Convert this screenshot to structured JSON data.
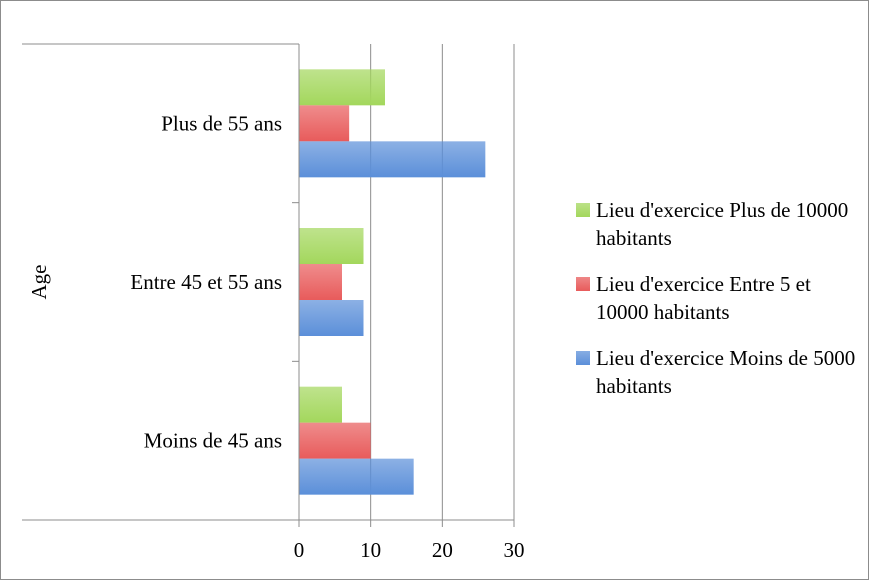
{
  "chart_data": {
    "type": "bar",
    "orientation": "horizontal",
    "ylabel": "Age",
    "xlabel": "",
    "categories": [
      "Moins de 45 ans",
      "Entre 45 et 55 ans",
      "Plus de 55 ans"
    ],
    "xlim": [
      0,
      30
    ],
    "xticks": [
      "0",
      "10",
      "20",
      "30"
    ],
    "grid": true,
    "legend_position": "right",
    "series": [
      {
        "name": "Lieu d'exercice Moins de 5000 habitants",
        "values": [
          16,
          9,
          26
        ],
        "color": "#5b8fd9"
      },
      {
        "name": "Lieu d'exercice Entre 5 et 10000 habitants",
        "values": [
          10,
          6,
          7
        ],
        "color": "#e85b5b"
      },
      {
        "name": "Lieu d'exercice Plus de 10000 habitants",
        "values": [
          6,
          9,
          12
        ],
        "color": "#a3d75c"
      }
    ]
  },
  "legend": {
    "items": [
      {
        "label": "Lieu d'exercice Plus de 10000 habitants",
        "color": "#a3d75c"
      },
      {
        "label": "Lieu d'exercice Entre 5 et 10000 habitants",
        "color": "#e85b5b"
      },
      {
        "label": "Lieu d'exercice Moins de 5000 habitants",
        "color": "#5b8fd9"
      }
    ]
  }
}
